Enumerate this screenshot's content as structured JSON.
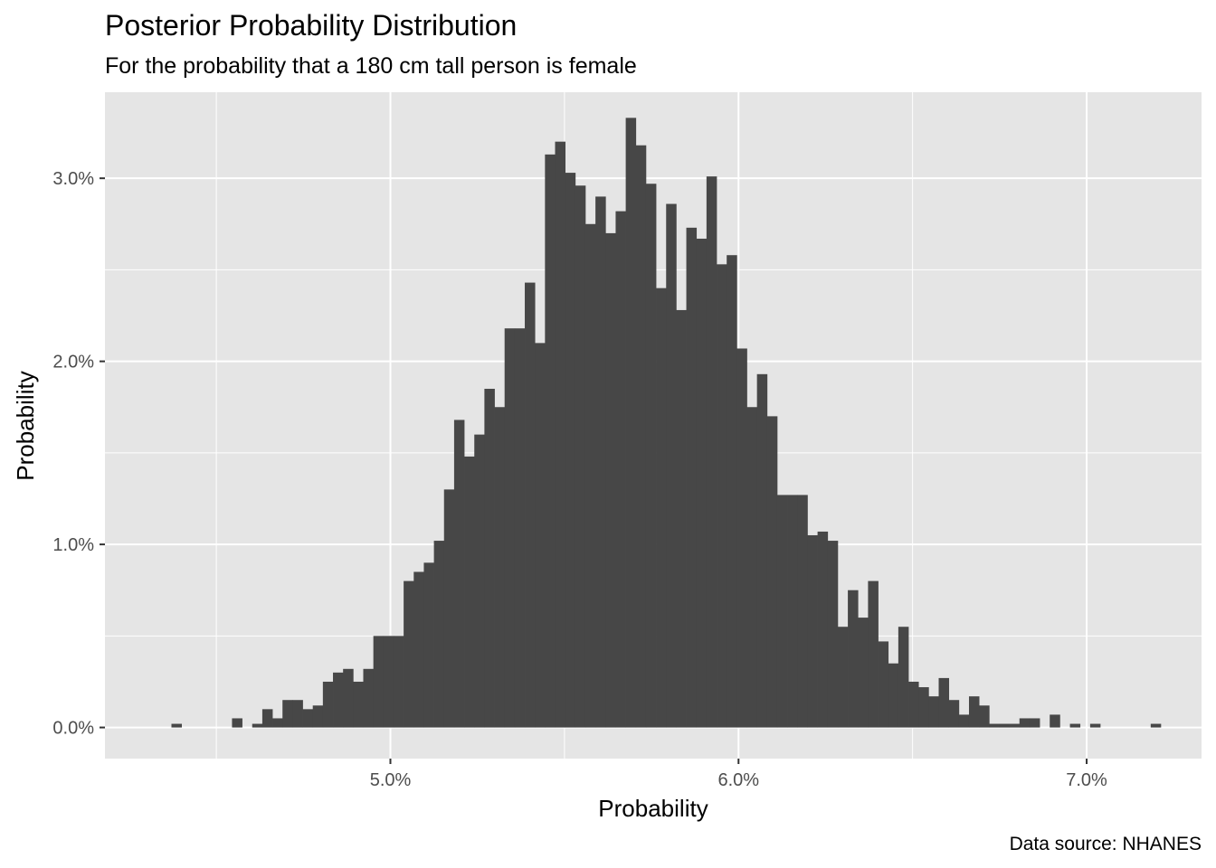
{
  "chart_data": {
    "type": "bar",
    "title": "Posterior Probability Distribution",
    "subtitle": "For the probability that a 180 cm tall person is female",
    "caption": "Data source: NHANES",
    "xlabel": "Probability",
    "ylabel": "Probability",
    "xlim": [
      0.0418,
      0.0733
    ],
    "ylim": [
      -0.0017,
      0.0347
    ],
    "xticks": [
      0.05,
      0.06,
      0.07
    ],
    "xtick_labels": [
      "5.0%",
      "6.0%",
      "7.0%"
    ],
    "yticks": [
      0.0,
      0.01,
      0.02,
      0.03
    ],
    "ytick_labels": [
      "0.0%",
      "1.0%",
      "2.0%",
      "3.0%"
    ],
    "grid": true,
    "bar_color": "#474747",
    "panel_color": "#e5e5e5",
    "grid_color": "#ffffff",
    "bin_width": 0.00029,
    "bin_start": 0.04371,
    "values": [
      0.0002,
      0,
      0,
      0,
      0,
      0,
      0.0005,
      0,
      0.0002,
      0.001,
      0.0005,
      0.0015,
      0.0015,
      0.001,
      0.0012,
      0.0025,
      0.003,
      0.0032,
      0.0025,
      0.0032,
      0.005,
      0.005,
      0.005,
      0.008,
      0.0085,
      0.009,
      0.0102,
      0.013,
      0.0168,
      0.0148,
      0.016,
      0.0185,
      0.0175,
      0.0218,
      0.0218,
      0.0243,
      0.021,
      0.0313,
      0.032,
      0.0303,
      0.0296,
      0.0275,
      0.029,
      0.027,
      0.0282,
      0.0333,
      0.0318,
      0.0297,
      0.024,
      0.0286,
      0.0228,
      0.0273,
      0.0267,
      0.0301,
      0.0253,
      0.0258,
      0.0207,
      0.0175,
      0.0193,
      0.017,
      0.0127,
      0.0127,
      0.0127,
      0.0105,
      0.0107,
      0.0102,
      0.0055,
      0.0075,
      0.006,
      0.008,
      0.0047,
      0.0035,
      0.0055,
      0.0025,
      0.0022,
      0.0017,
      0.0027,
      0.0015,
      0.0007,
      0.0017,
      0.0012,
      0.0002,
      0.0002,
      0.0002,
      0.0005,
      0.0005,
      0,
      0.0007,
      0,
      0.0002,
      0,
      0.0002,
      0,
      0,
      0,
      0,
      0,
      0.0002
    ]
  }
}
